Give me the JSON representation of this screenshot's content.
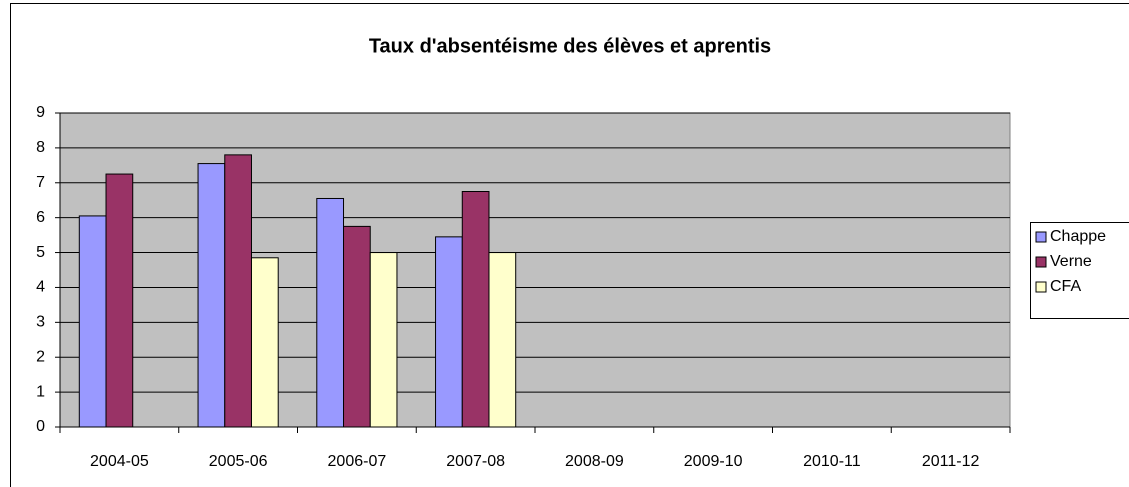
{
  "chart_data": {
    "type": "bar",
    "title": "Taux d'absentéisme des élèves et aprentis",
    "categories": [
      "2004-05",
      "2005-06",
      "2006-07",
      "2007-08",
      "2008-09",
      "2009-10",
      "2010-11",
      "2011-12"
    ],
    "series": [
      {
        "name": "Chappe",
        "color": "#9999ff",
        "values": [
          6.05,
          7.55,
          6.55,
          5.45,
          null,
          null,
          null,
          null
        ]
      },
      {
        "name": "Verne",
        "color": "#993366",
        "values": [
          7.25,
          7.8,
          5.75,
          6.75,
          null,
          null,
          null,
          null
        ]
      },
      {
        "name": "CFA",
        "color": "#ffffcc",
        "values": [
          null,
          4.85,
          5.0,
          5.0,
          null,
          null,
          null,
          null
        ]
      }
    ],
    "ylim": [
      0,
      9
    ],
    "yticks": [
      0,
      1,
      2,
      3,
      4,
      5,
      6,
      7,
      8,
      9
    ],
    "grid": true,
    "legend": "right"
  }
}
